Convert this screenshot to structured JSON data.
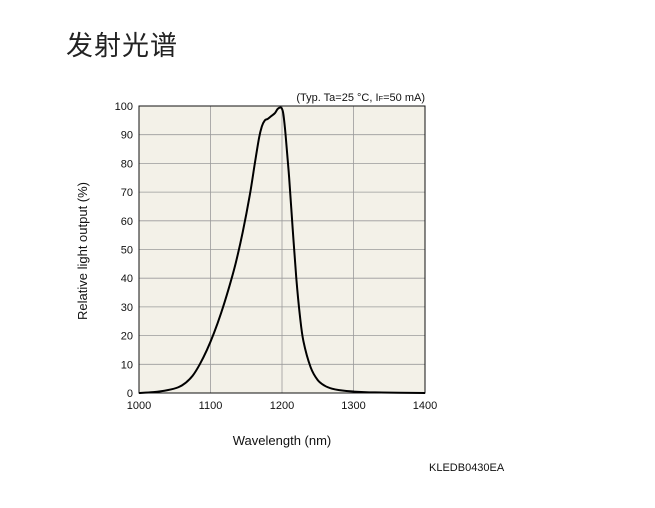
{
  "page_title": "发射光谱",
  "figure_code": "KLEDB0430EA",
  "chart_data": {
    "type": "line",
    "title": "",
    "conditions": {
      "prefix": "(Typ. Ta=25 °C, I",
      "subscript": "F",
      "suffix": "=50 mA)"
    },
    "xlabel": "Wavelength (nm)",
    "ylabel": "Relative light output (%)",
    "xlim": [
      1000,
      1400
    ],
    "ylim": [
      0,
      100
    ],
    "x_ticks": [
      1000,
      1100,
      1200,
      1300,
      1400
    ],
    "y_ticks": [
      0,
      10,
      20,
      30,
      40,
      50,
      60,
      70,
      80,
      90,
      100
    ],
    "grid": true,
    "plot_background": "#f3f1e8",
    "line_color": "#000000",
    "series": [
      {
        "x": [
          1000,
          1020,
          1040,
          1055,
          1065,
          1075,
          1085,
          1095,
          1105,
          1115,
          1125,
          1135,
          1145,
          1155,
          1162,
          1168,
          1172,
          1176,
          1180,
          1185,
          1190,
          1194,
          1198,
          1200,
          1202,
          1205,
          1210,
          1215,
          1220,
          1225,
          1230,
          1240,
          1250,
          1260,
          1270,
          1280,
          1300,
          1330,
          1400
        ],
        "y": [
          0,
          0.3,
          1,
          2,
          3.5,
          6,
          10,
          15,
          21,
          28,
          36,
          45,
          56,
          69,
          80,
          89,
          93,
          95,
          95.5,
          96.5,
          97.5,
          99,
          99.5,
          99,
          97,
          90,
          75,
          57,
          40,
          27,
          18,
          9,
          4.5,
          2.5,
          1.5,
          1,
          0.5,
          0.2,
          0
        ]
      }
    ]
  }
}
